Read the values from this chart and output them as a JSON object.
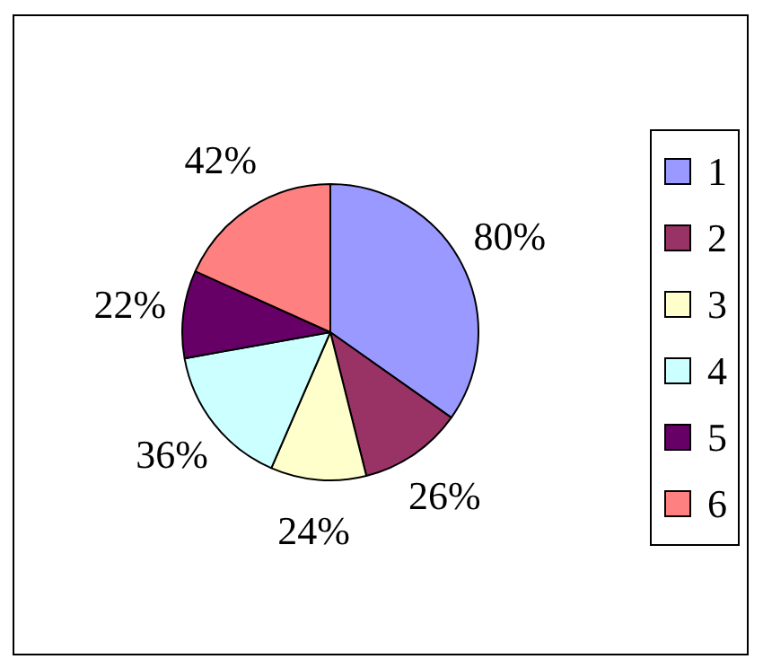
{
  "chart_data": {
    "type": "pie",
    "categories": [
      "1",
      "2",
      "3",
      "4",
      "5",
      "6"
    ],
    "values": [
      80,
      26,
      24,
      36,
      22,
      42
    ],
    "value_labels": [
      "80%",
      "26%",
      "24%",
      "36%",
      "22%",
      "42%"
    ],
    "colors": [
      "#9999ff",
      "#993366",
      "#ffffcc",
      "#ccffff",
      "#660066",
      "#ff8080"
    ],
    "legend": "right"
  }
}
